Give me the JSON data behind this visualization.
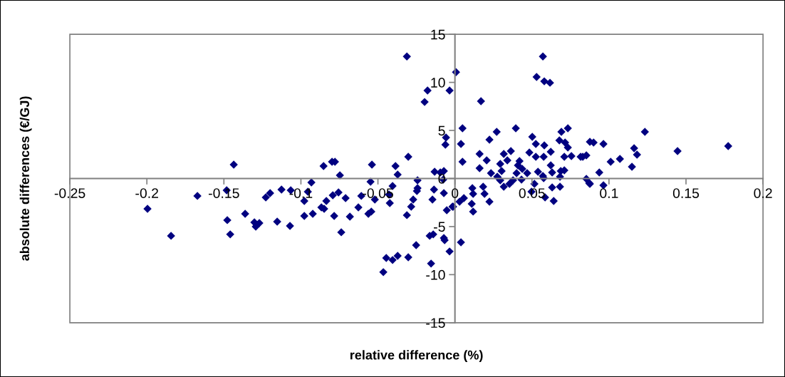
{
  "chart_data": {
    "type": "scatter",
    "xlabel": "relative difference (%)",
    "ylabel": "absolute differences (€/GJ)",
    "xlim": [
      -0.25,
      0.2
    ],
    "xticks": [
      -0.25,
      -0.2,
      -0.15,
      -0.1,
      -0.05,
      0,
      0.05,
      0.1,
      0.15,
      0.2
    ],
    "ylim": [
      -15,
      15
    ],
    "yticks": [
      -15,
      -10,
      -5,
      0,
      5,
      10,
      15
    ],
    "grid": false,
    "marker": "diamond",
    "series": [
      {
        "color": "#000080",
        "x": [
          -0.1436,
          -0.0853,
          -0.0798,
          -0.0747,
          -0.0932,
          -0.1482,
          -0.1672,
          -0.1228,
          -0.12,
          -0.1126,
          -0.1066,
          -0.0955,
          -0.0978,
          -0.0793,
          -0.0756,
          -0.0835,
          -0.1996,
          -0.1362,
          -0.1302,
          -0.127,
          -0.1293,
          -0.1154,
          -0.1071,
          -0.0978,
          -0.0923,
          -0.0867,
          -0.0849,
          -0.0784,
          -0.1478,
          -0.1459,
          -0.1843,
          -0.0738,
          -0.0312,
          0.0007,
          -0.0178,
          -0.0035,
          -0.0197,
          -0.0058,
          -0.0062,
          -0.0779,
          -0.0539,
          -0.0303,
          -0.0386,
          -0.0372,
          -0.0132,
          -0.0095,
          -0.0072,
          -0.0548,
          -0.0243,
          -0.0076,
          -0.0405,
          -0.0243,
          -0.0247,
          -0.0136,
          -0.071,
          -0.0608,
          -0.052,
          -0.0428,
          -0.0072,
          -0.0271,
          -0.0146,
          -0.0423,
          -0.0627,
          -0.0284,
          -0.0543,
          -0.0562,
          -0.0053,
          -0.0682,
          -0.0312,
          -0.0012,
          -0.0164,
          -0.0141,
          -0.0072,
          -0.0067,
          -0.0252,
          -0.0035,
          -0.0446,
          -0.0405,
          -0.0372,
          -0.0303,
          -0.0465,
          -0.0155,
          0.0571,
          0.053,
          0.058,
          0.0617,
          0.0169,
          0.0049,
          0.0395,
          0.0271,
          0.0691,
          0.0733,
          0.0502,
          0.0224,
          0.0525,
          0.058,
          0.0678,
          0.0715,
          0.0039,
          0.0876,
          0.0622,
          0.0733,
          0.016,
          0.0363,
          0.0317,
          0.0483,
          0.0525,
          0.0576,
          0.071,
          0.0756,
          0.0816,
          0.0853,
          0.0206,
          0.034,
          0.0049,
          0.0419,
          0.0294,
          0.0409,
          0.0622,
          0.0437,
          0.016,
          0.0303,
          0.0539,
          0.0631,
          0.0687,
          0.071,
          0.0234,
          0.04,
          0.0469,
          0.0571,
          0.0275,
          0.0682,
          0.0294,
          0.0432,
          0.0576,
          0.0853,
          0.0872,
          0.0377,
          0.0354,
          0.0317,
          0.0516,
          0.0631,
          0.0682,
          0.0113,
          0.0183,
          0.0192,
          0.0118,
          0.0497,
          0.0585,
          0.0641,
          0.0058,
          0.003,
          0.0109,
          0.0224,
          -0.0016,
          0.0118,
          0.0039,
          0.1233,
          0.09,
          0.0964,
          0.1163,
          0.1774,
          0.1445,
          0.1182,
          0.083,
          0.1071,
          0.1011,
          0.1149,
          0.0937,
          0.0876,
          0.0964
        ],
        "values": [
          1.44,
          1.3,
          1.74,
          0.33,
          -0.41,
          -1.22,
          -1.81,
          -1.96,
          -1.52,
          -1.15,
          -1.22,
          -1.37,
          -2.33,
          -1.74,
          -1.44,
          -2.33,
          -3.15,
          -3.67,
          -4.56,
          -4.63,
          -5.0,
          -4.48,
          -4.93,
          -3.89,
          -3.67,
          -3.0,
          -3.15,
          -3.89,
          -4.33,
          -5.81,
          -5.96,
          -5.59,
          12.7,
          11.07,
          9.15,
          9.15,
          7.96,
          4.26,
          3.52,
          1.74,
          1.44,
          2.26,
          1.3,
          0.41,
          0.7,
          0.63,
          0.78,
          -0.33,
          -0.19,
          -0.11,
          -0.78,
          -1.0,
          -1.3,
          -1.15,
          -2.04,
          -1.81,
          -2.19,
          -1.67,
          -1.52,
          -2.19,
          -2.19,
          -2.56,
          -3.0,
          -2.93,
          -3.44,
          -3.67,
          -3.3,
          -3.96,
          -3.81,
          -2.93,
          -5.96,
          -5.81,
          -6.19,
          -6.41,
          -6.93,
          -7.59,
          -8.26,
          -8.48,
          -8.04,
          -8.19,
          -9.74,
          -8.85,
          12.7,
          10.56,
          10.11,
          9.96,
          8.04,
          5.22,
          5.22,
          4.85,
          4.85,
          5.22,
          4.33,
          4.04,
          3.59,
          3.44,
          3.96,
          3.74,
          3.59,
          3.81,
          2.78,
          3.22,
          2.56,
          2.85,
          2.56,
          2.7,
          2.26,
          2.26,
          2.26,
          2.33,
          2.26,
          2.41,
          1.89,
          1.89,
          1.74,
          1.81,
          1.52,
          1.37,
          1.37,
          1.0,
          1.07,
          0.78,
          0.7,
          0.63,
          0.78,
          0.85,
          0.56,
          0.56,
          0.56,
          0.26,
          0.19,
          0.19,
          -0.19,
          -0.11,
          0.04,
          -0.04,
          -0.48,
          -0.19,
          -0.56,
          -0.85,
          -0.56,
          -0.93,
          -0.85,
          -1.0,
          -0.85,
          -1.59,
          -1.59,
          -1.37,
          -1.96,
          -2.33,
          -2.04,
          -2.41,
          -2.63,
          -2.41,
          -2.93,
          -3.44,
          -6.63,
          4.85,
          3.74,
          3.59,
          3.15,
          3.37,
          2.85,
          2.48,
          2.26,
          2.04,
          1.74,
          1.22,
          0.63,
          -0.56,
          -0.7
        ]
      }
    ]
  }
}
